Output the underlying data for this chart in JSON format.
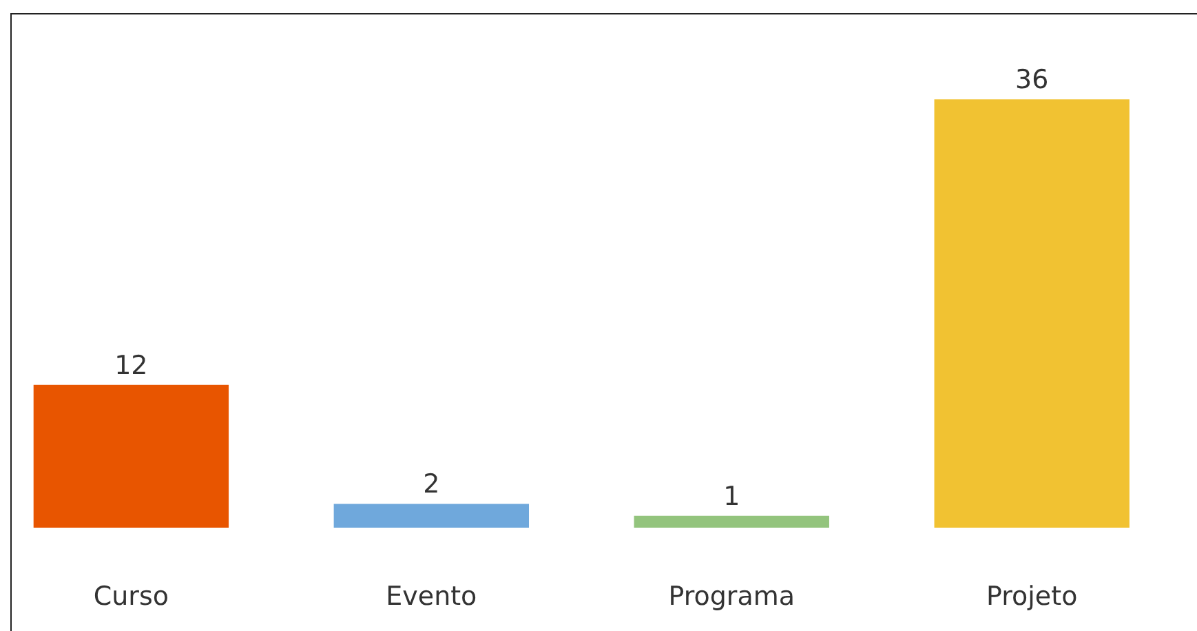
{
  "chart_data": {
    "type": "bar",
    "categories": [
      "Curso",
      "Evento",
      "Programa",
      "Projeto"
    ],
    "values": [
      12,
      2,
      1,
      36
    ],
    "colors": [
      "#e85500",
      "#6fa8dc",
      "#93c47d",
      "#f1c232"
    ],
    "data_labels": true
  }
}
